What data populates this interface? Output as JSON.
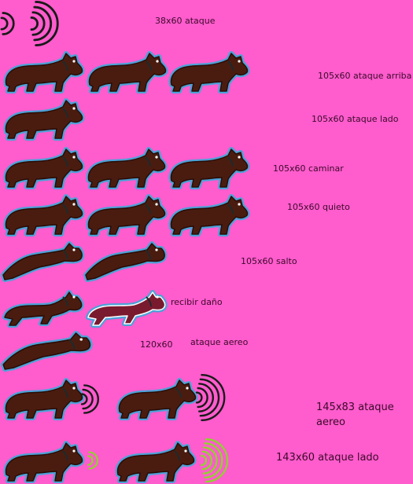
{
  "colors": {
    "background": "#ff5ccd",
    "fur": "#4a1c10",
    "outline": "#2a0c06",
    "glow": "#3aa9d9",
    "sound_dark": "#1a1a1a",
    "sound_green": "#8ad62a",
    "hurt_fill": "#7a1a2e",
    "hurt_outline": "#ffffff"
  },
  "labels": {
    "sound_sprite": "38x60 ataque",
    "attack_up": "105x60 ataque arriba",
    "attack_side": "105x60 ataque lado",
    "walk": "105x60 caminar",
    "idle": "105x60 quieto",
    "jump": "105x60 salto",
    "hurt": "recibir daño",
    "air_size": "120x60",
    "air_attack": "ataque aereo",
    "big_air_attack": "145x83 ataque aereo",
    "big_side_attack": "143x60 ataque lado"
  },
  "icons": [
    "sound-wave-icon",
    "wolf-sprite-icon",
    "wolf-hurt-sprite-icon",
    "green-wave-icon"
  ]
}
